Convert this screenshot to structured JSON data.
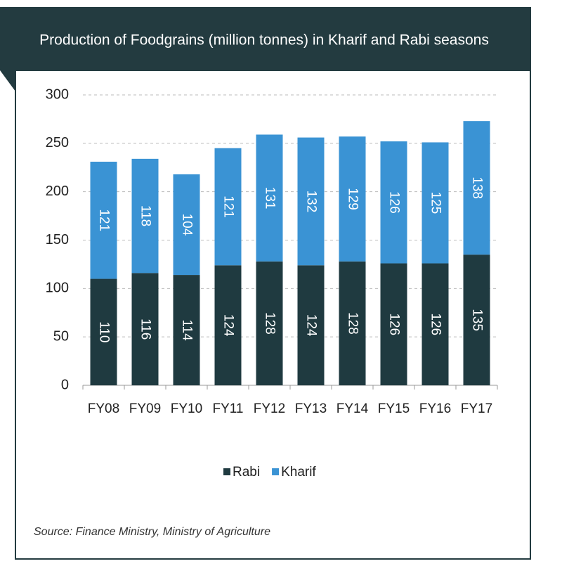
{
  "chart_data": {
    "type": "stacked_bar",
    "title": "Production of Foodgrains (million tonnes) in Kharif and Rabi seasons",
    "source": "Source: Finance Ministry, Ministry of Agriculture",
    "categories": [
      "FY08",
      "FY09",
      "FY10",
      "FY11",
      "FY12",
      "FY13",
      "FY14",
      "FY15",
      "FY16",
      "FY17"
    ],
    "series": [
      {
        "name": "Rabi",
        "color": "#1f3a40",
        "values": [
          110,
          116,
          114,
          124,
          128,
          124,
          128,
          126,
          126,
          135
        ]
      },
      {
        "name": "Kharif",
        "color": "#3a93d4",
        "values": [
          121,
          118,
          104,
          121,
          131,
          132,
          129,
          126,
          125,
          138
        ]
      }
    ],
    "ylim": [
      0,
      300
    ],
    "yticks": [
      0,
      50,
      100,
      150,
      200,
      250,
      300
    ],
    "grid": true,
    "legend": "bottom"
  }
}
